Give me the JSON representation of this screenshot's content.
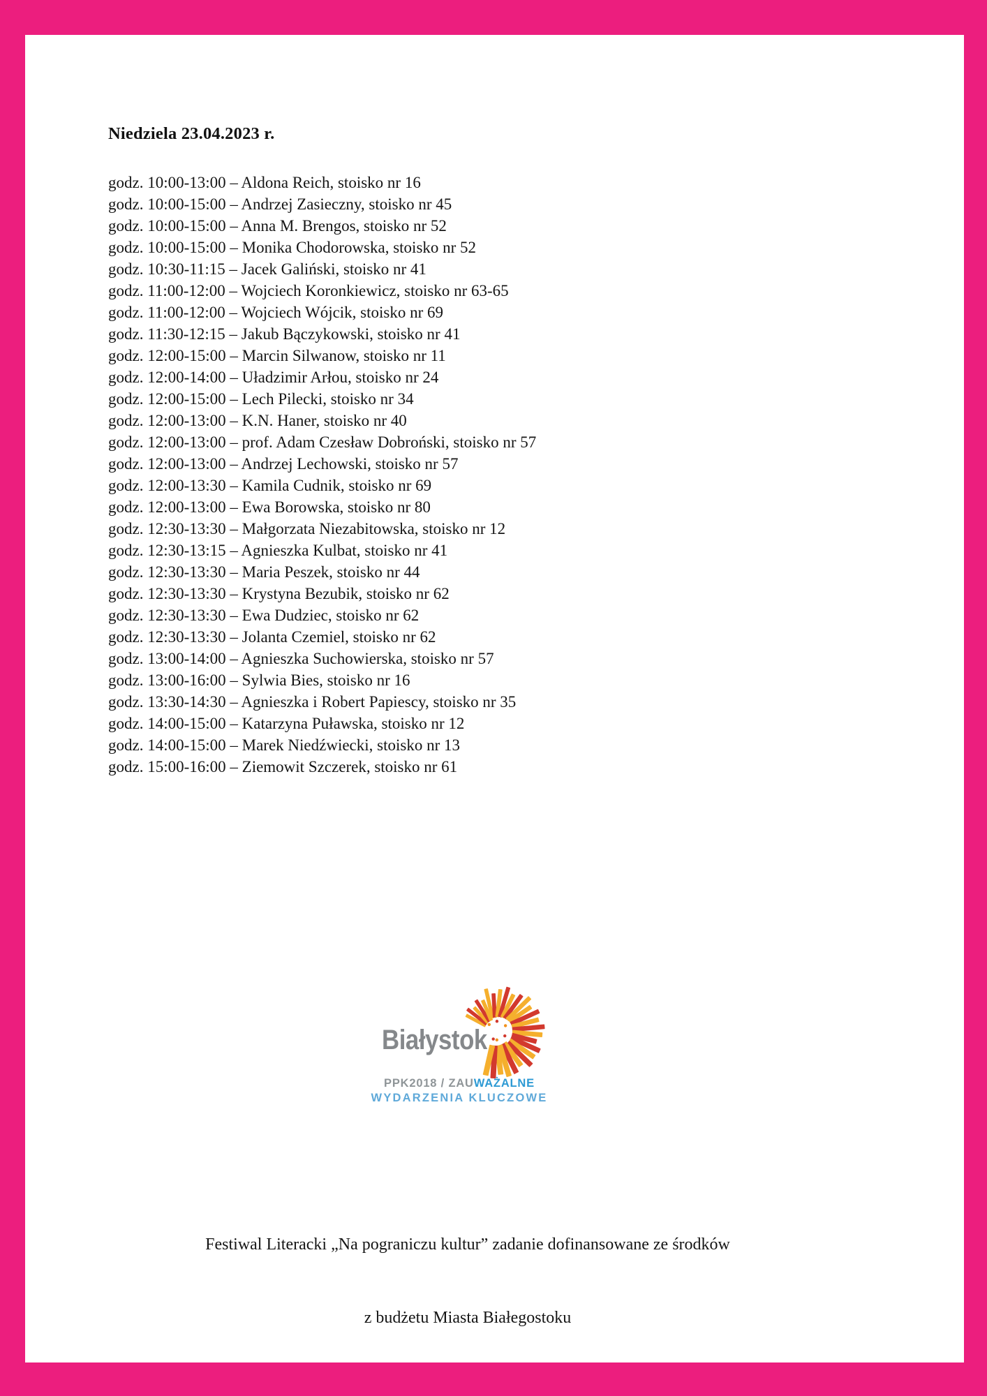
{
  "document": {
    "heading": "Niedziela 23.04.2023 r.",
    "labels": {
      "time_prefix": "godz.",
      "stand_prefix": "stoisko nr",
      "row_format": "{time_prefix} {time} – {name}, {stand_prefix} {stand}"
    },
    "schedule": [
      {
        "time": "10:00-13:00",
        "name": "Aldona Reich",
        "stand": "16"
      },
      {
        "time": "10:00-15:00",
        "name": "Andrzej Zasieczny",
        "stand": "45"
      },
      {
        "time": "10:00-15:00",
        "name": "Anna M. Brengos",
        "stand": "52"
      },
      {
        "time": "10:00-15:00",
        "name": "Monika Chodorowska",
        "stand": "52"
      },
      {
        "time": "10:30-11:15",
        "name": "Jacek Galiński",
        "stand": "41"
      },
      {
        "time": "11:00-12:00",
        "name": "Wojciech Koronkiewicz",
        "stand": "63-65"
      },
      {
        "time": "11:00-12:00",
        "name": "Wojciech Wójcik",
        "stand": "69"
      },
      {
        "time": "11:30-12:15",
        "name": "Jakub Bączykowski",
        "stand": "41"
      },
      {
        "time": "12:00-15:00",
        "name": "Marcin Silwanow",
        "stand": "11"
      },
      {
        "time": "12:00-14:00",
        "name": "Uładzimir Arłou",
        "stand": "24"
      },
      {
        "time": "12:00-15:00",
        "name": "Lech Pilecki",
        "stand": "34"
      },
      {
        "time": "12:00-13:00",
        "name": "K.N. Haner",
        "stand": "40"
      },
      {
        "time": "12:00-13:00",
        "name": "prof. Adam Czesław Dobroński",
        "stand": "57"
      },
      {
        "time": "12:00-13:00",
        "name": "Andrzej Lechowski",
        "stand": "57"
      },
      {
        "time": "12:00-13:30",
        "name": "Kamila Cudnik",
        "stand": "69"
      },
      {
        "time": "12:00-13:00",
        "name": "Ewa Borowska",
        "stand": "80"
      },
      {
        "time": "12:30-13:30",
        "name": "Małgorzata Niezabitowska",
        "stand": "12"
      },
      {
        "time": "12:30-13:15",
        "name": "Agnieszka Kulbat",
        "stand": "41"
      },
      {
        "time": "12:30-13:30",
        "name": "Maria Peszek",
        "stand": "44"
      },
      {
        "time": "12:30-13:30",
        "name": "Krystyna Bezubik",
        "stand": "62"
      },
      {
        "time": "12:30-13:30",
        "name": "Ewa Dudziec",
        "stand": "62"
      },
      {
        "time": "12:30-13:30",
        "name": "Jolanta Czemiel",
        "stand": "62"
      },
      {
        "time": "13:00-14:00",
        "name": "Agnieszka Suchowierska",
        "stand": "57"
      },
      {
        "time": "13:00-16:00",
        "name": "Sylwia Bies",
        "stand": "16"
      },
      {
        "time": "13:30-14:30",
        "name": "Agnieszka i Robert Papiescy",
        "stand": "35"
      },
      {
        "time": "14:00-15:00",
        "name": "Katarzyna Puławska",
        "stand": "12"
      },
      {
        "time": "14:00-15:00",
        "name": "Marek Niedźwiecki",
        "stand": "13"
      },
      {
        "time": "15:00-16:00",
        "name": "Ziemowit Szczerek",
        "stand": "61"
      }
    ],
    "logo": {
      "city": "Białystok",
      "line1_gray": "PPK2018 / ZAU",
      "line1_blue": "WAŻALNE",
      "line2": "WYDARZENIA KLUCZOWE"
    },
    "footer": {
      "line1": "Festiwal Literacki „Na pograniczu kultur” zadanie dofinansowane ze środków",
      "line2": "z budżetu Miasta Białegostoku"
    },
    "colors": {
      "frame_pink": "#EC1E7E",
      "ray_red": "#D2392E",
      "ray_yellow": "#F5AF2D",
      "dot_orange": "#F2921D",
      "city_gray": "#85888B",
      "ppk_gray": "#8F9598",
      "ppk_blue": "#2E9AD4",
      "ppk_light_blue": "#5FA9D9"
    }
  }
}
